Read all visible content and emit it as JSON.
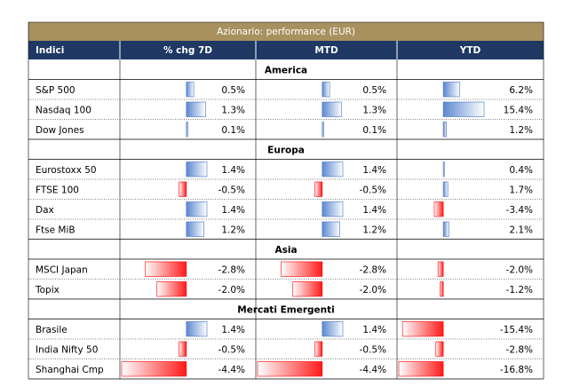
{
  "title": "Azionario: performance (EUR)",
  "columns": [
    "Indici",
    "% chg 7D",
    "MTD",
    "YTD"
  ],
  "sections": [
    {
      "name": "America",
      "rows": [
        [
          "S&P 500",
          "0.5%",
          "0.5%",
          "6.2%"
        ],
        [
          "Nasdaq 100",
          "1.3%",
          "1.3%",
          "15.4%"
        ],
        [
          "Dow Jones",
          "0.1%",
          "0.1%",
          "1.2%"
        ]
      ]
    },
    {
      "name": "Europa",
      "rows": [
        [
          "Eurostoxx 50",
          "1.4%",
          "1.4%",
          "0.4%"
        ],
        [
          "FTSE 100",
          "-0.5%",
          "-0.5%",
          "1.7%"
        ],
        [
          "Dax",
          "1.4%",
          "1.4%",
          "-3.4%"
        ],
        [
          "Ftse MiB",
          "1.2%",
          "1.2%",
          "2.1%"
        ]
      ]
    },
    {
      "name": "Asia",
      "rows": [
        [
          "MSCI Japan",
          "-2.8%",
          "-2.8%",
          "-2.0%"
        ],
        [
          "Topix",
          "-2.0%",
          "-2.0%",
          "-1.2%"
        ]
      ]
    },
    {
      "name": "Mercati Emergenti",
      "rows": [
        [
          "Brasile",
          "1.4%",
          "1.4%",
          "-15.4%"
        ],
        [
          "India Nifty 50",
          "-0.5%",
          "-0.5%",
          "-2.8%"
        ],
        [
          "Shanghai Cmp",
          "-4.4%",
          "-4.4%",
          "-16.8%"
        ]
      ]
    }
  ]
}
